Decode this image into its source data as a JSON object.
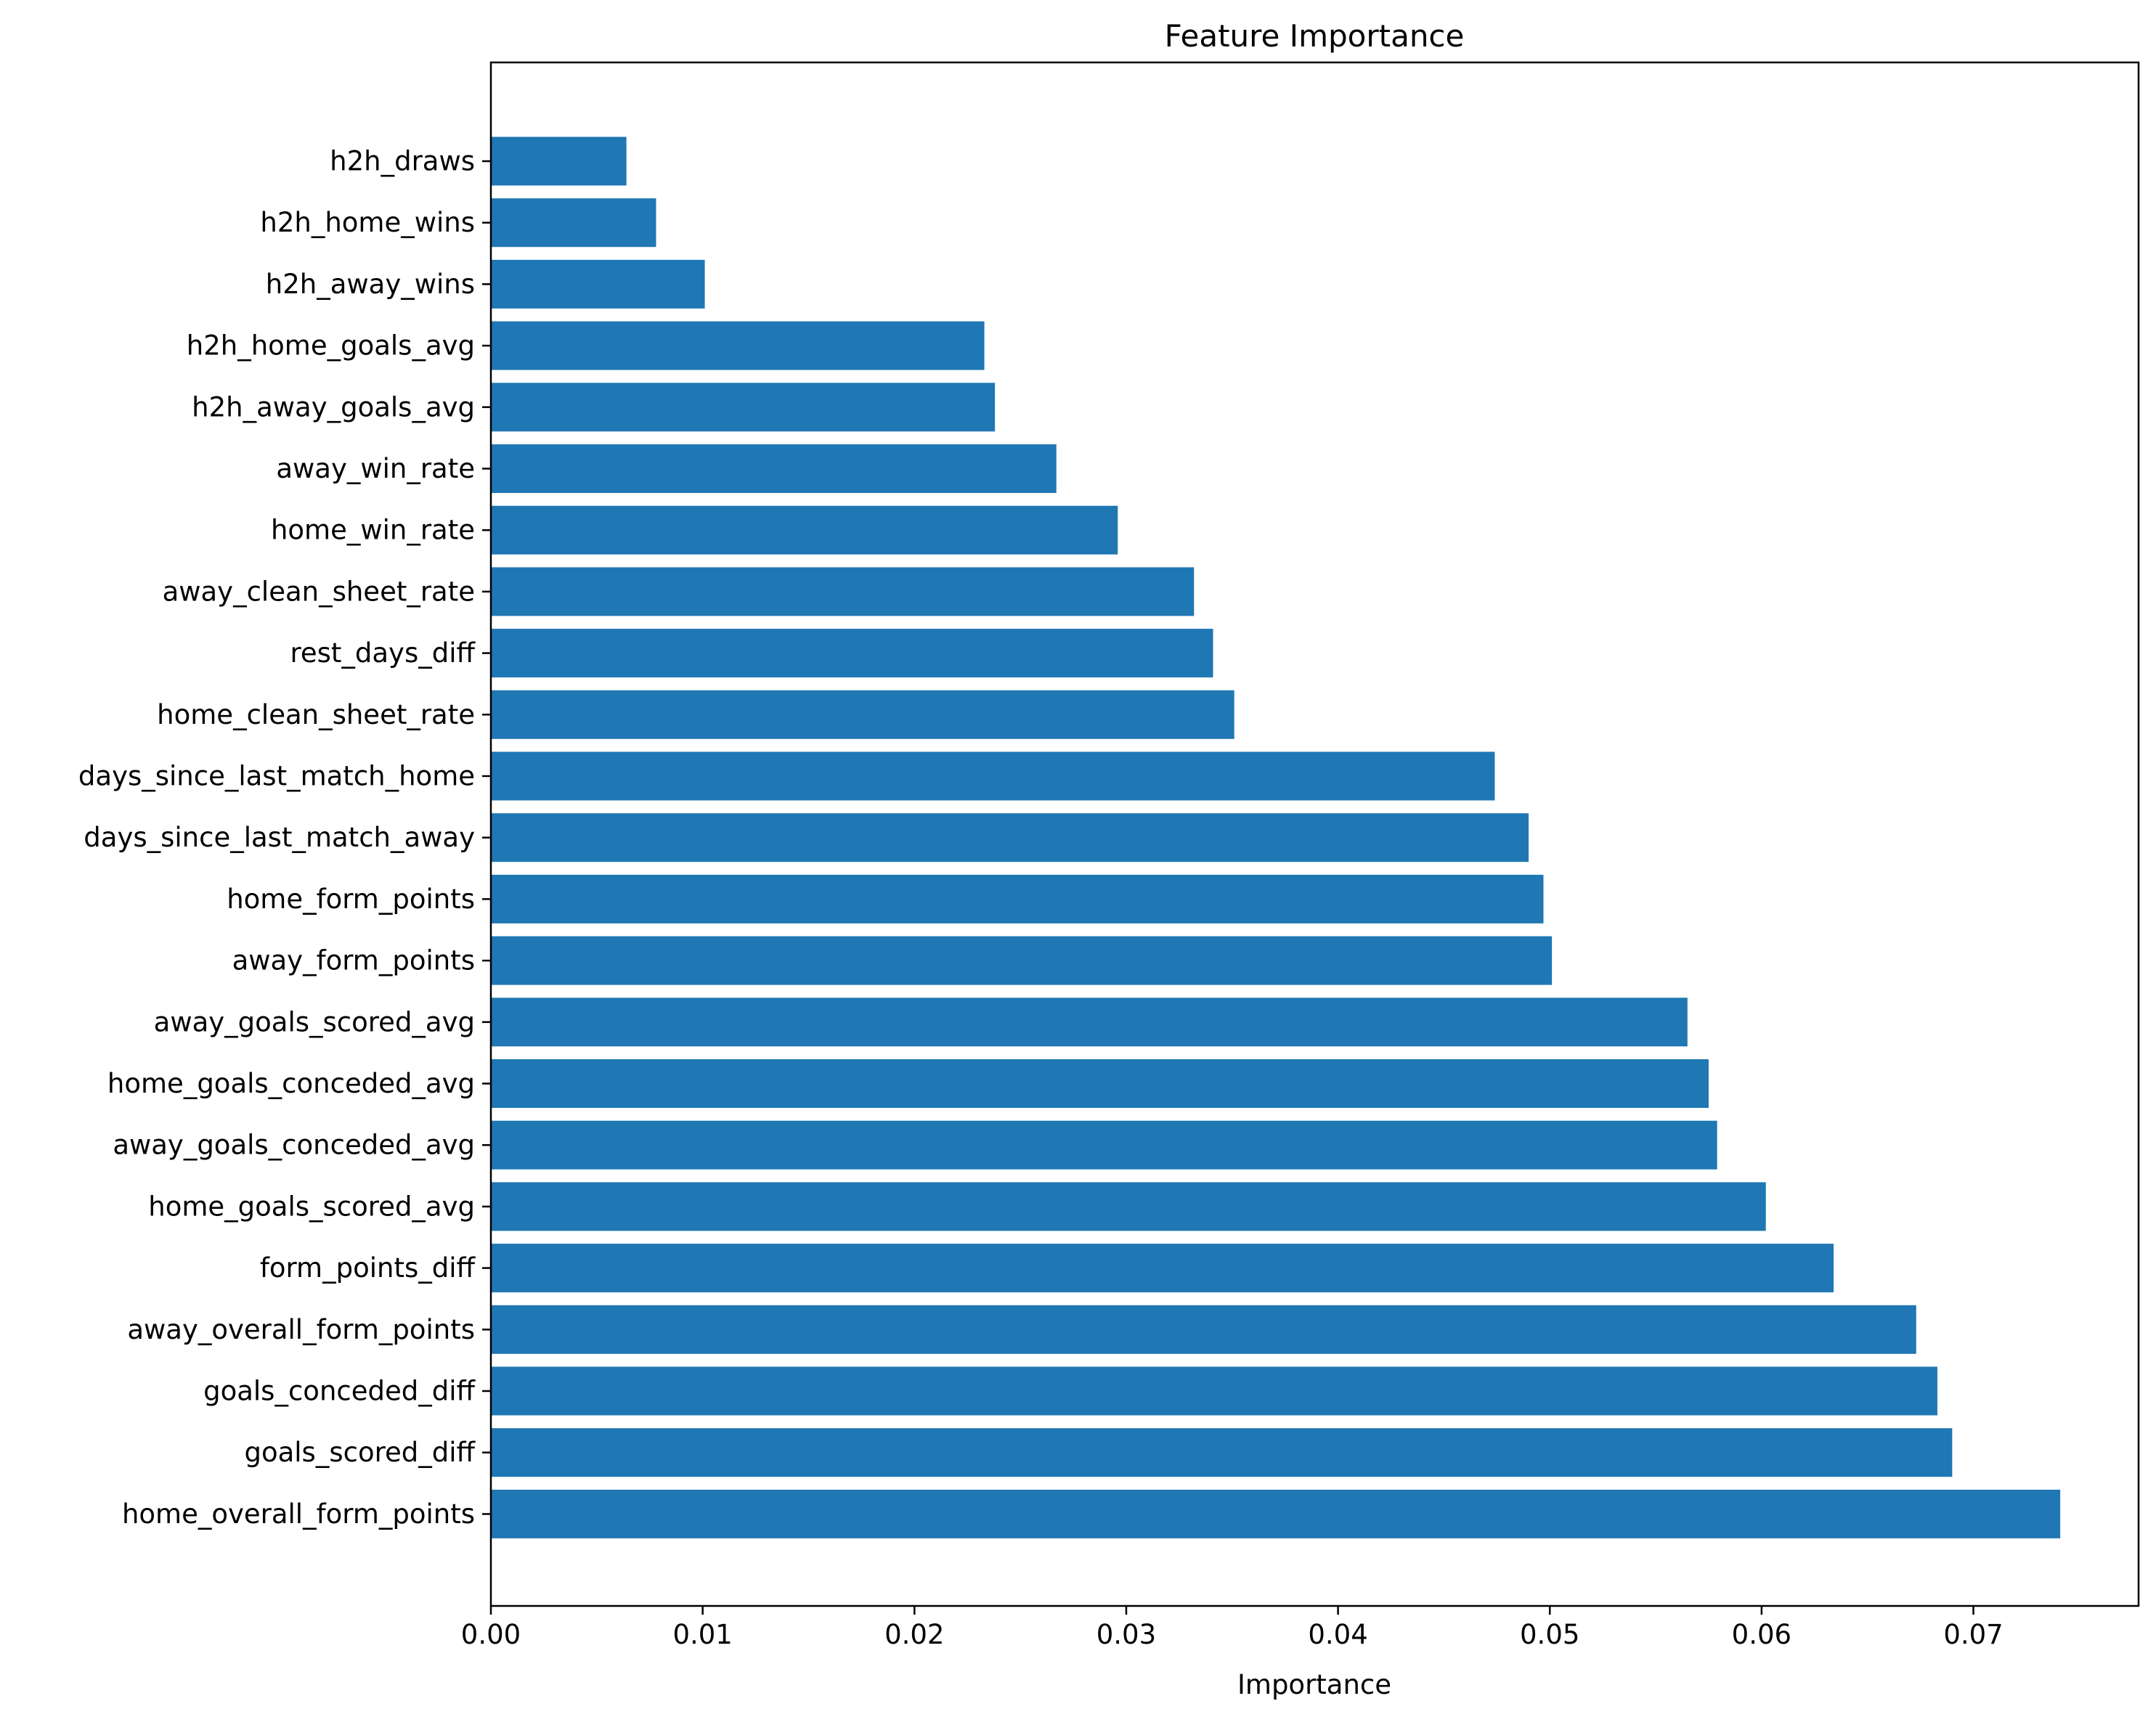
{
  "chart_data": {
    "type": "bar",
    "orientation": "horizontal",
    "title": "Feature Importance",
    "xlabel": "Importance",
    "ylabel": "",
    "xlim": [
      0,
      0.0778
    ],
    "xticks": [
      "0.00",
      "0.01",
      "0.02",
      "0.03",
      "0.04",
      "0.05",
      "0.06",
      "0.07"
    ],
    "bar_color": "#1f77b4",
    "grid": false,
    "categories": [
      "h2h_draws",
      "h2h_home_wins",
      "h2h_away_wins",
      "h2h_home_goals_avg",
      "h2h_away_goals_avg",
      "away_win_rate",
      "home_win_rate",
      "away_clean_sheet_rate",
      "rest_days_diff",
      "home_clean_sheet_rate",
      "days_since_last_match_home",
      "days_since_last_match_away",
      "home_form_points",
      "away_form_points",
      "away_goals_scored_avg",
      "home_goals_conceded_avg",
      "away_goals_conceded_avg",
      "home_goals_scored_avg",
      "form_points_diff",
      "away_overall_form_points",
      "goals_conceded_diff",
      "goals_scored_diff",
      "home_overall_form_points"
    ],
    "values": [
      0.0064,
      0.0078,
      0.0101,
      0.0233,
      0.0238,
      0.0267,
      0.0296,
      0.0332,
      0.0341,
      0.0351,
      0.0474,
      0.049,
      0.0497,
      0.0501,
      0.0565,
      0.0575,
      0.0579,
      0.0602,
      0.0634,
      0.0673,
      0.0683,
      0.069,
      0.0741
    ]
  }
}
